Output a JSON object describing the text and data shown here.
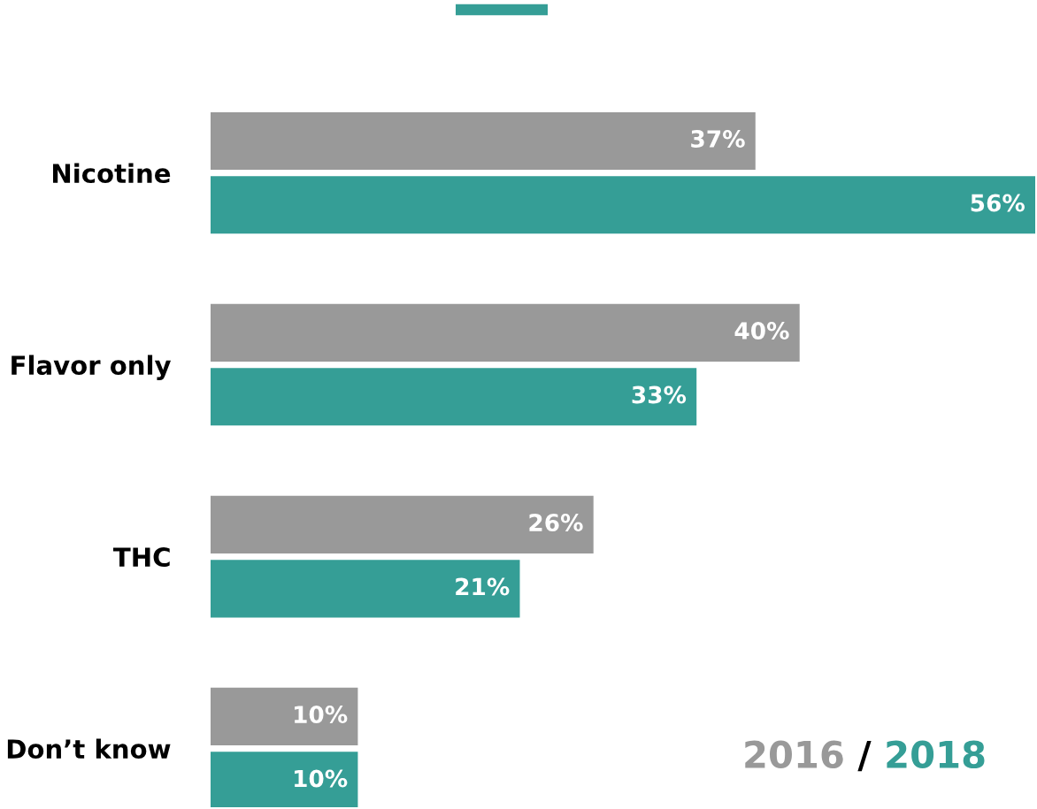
{
  "chart_data": {
    "type": "bar",
    "orientation": "horizontal",
    "categories": [
      "Nicotine",
      "Flavor only",
      "THC",
      "Don’t know"
    ],
    "series": [
      {
        "name": "2016",
        "color": "#999999",
        "values": [
          37,
          40,
          26,
          10
        ],
        "value_labels": [
          "37%",
          "40%",
          "26%",
          "10%"
        ]
      },
      {
        "name": "2018",
        "color": "#359e96",
        "values": [
          56,
          33,
          21,
          10
        ],
        "value_labels": [
          "56%",
          "33%",
          "21%",
          "10%"
        ]
      }
    ],
    "legend": "bottom right",
    "annotations": [
      "/"
    ],
    "grid": false
  }
}
